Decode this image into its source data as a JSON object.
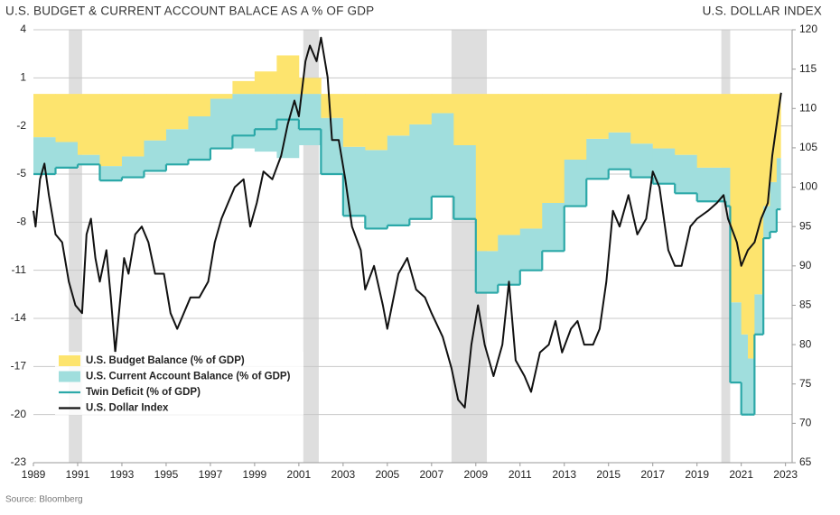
{
  "chart_data": {
    "type": "area",
    "title": "U.S. BUDGET & CURRENT ACCOUNT BALACE AS A % OF GDP",
    "y2_title": "U.S. DOLLAR INDEX",
    "source": "Source: Bloomberg",
    "x": [
      1989,
      1990,
      1991,
      1992,
      1993,
      1994,
      1995,
      1996,
      1997,
      1998,
      1999,
      2000,
      2001,
      2002,
      2003,
      2004,
      2005,
      2006,
      2007,
      2008,
      2009,
      2010,
      2011,
      2012,
      2013,
      2014,
      2015,
      2016,
      2017,
      2018,
      2019,
      2020.3,
      2020.5,
      2021.0,
      2021.3,
      2021.6,
      2022.0,
      2022.3,
      2022.6
    ],
    "series": [
      {
        "name": "U.S. Budget Balance (% of GDP)",
        "color": "#fde46e",
        "values": [
          -2.7,
          -3.0,
          -3.8,
          -4.5,
          -3.9,
          -2.9,
          -2.2,
          -1.4,
          -0.3,
          0.8,
          1.4,
          2.4,
          1.0,
          -1.5,
          -3.3,
          -3.5,
          -2.6,
          -1.9,
          -1.2,
          -3.2,
          -9.8,
          -8.8,
          -8.4,
          -6.8,
          -4.1,
          -2.8,
          -2.4,
          -3.1,
          -3.4,
          -3.8,
          -4.6,
          -4.6,
          -13.0,
          -15.0,
          -16.5,
          -12.5,
          -7.0,
          -5.5,
          -4.0
        ]
      },
      {
        "name": "U.S. Current Account Balance (% of GDP)",
        "color": "#a0dedd",
        "values": [
          -2.3,
          -1.6,
          -0.6,
          -0.9,
          -1.3,
          -1.9,
          -2.2,
          -2.7,
          -3.1,
          -3.4,
          -3.6,
          -4.0,
          -3.2,
          -3.5,
          -4.3,
          -4.9,
          -5.6,
          -5.9,
          -5.2,
          -4.6,
          -2.6,
          -3.1,
          -2.6,
          -3.0,
          -2.9,
          -2.5,
          -2.3,
          -2.1,
          -2.2,
          -2.4,
          -2.1,
          -2.4,
          -5.0,
          -5.0,
          -3.5,
          -2.5,
          -2.0,
          -3.1,
          -3.2
        ]
      },
      {
        "name": "Twin Deficit (% of GDP)",
        "color": "#2ba8a8",
        "values": [
          -5.0,
          -4.6,
          -4.4,
          -5.4,
          -5.2,
          -4.8,
          -4.4,
          -4.1,
          -3.4,
          -2.6,
          -2.2,
          -1.6,
          -2.2,
          -5.0,
          -7.6,
          -8.4,
          -8.2,
          -7.8,
          -6.4,
          -7.8,
          -12.4,
          -11.9,
          -11.0,
          -9.8,
          -7.0,
          -5.3,
          -4.7,
          -5.2,
          -5.6,
          -6.2,
          -6.7,
          -7.0,
          -18.0,
          -20.0,
          -20.0,
          -15.0,
          -9.0,
          -8.6,
          -7.2
        ]
      },
      {
        "name": "U.S. Dollar Index",
        "color": "#111111",
        "axis": "y2",
        "x": [
          1989.0,
          1989.1,
          1989.3,
          1989.5,
          1989.7,
          1990.0,
          1990.3,
          1990.6,
          1990.9,
          1991.2,
          1991.4,
          1991.6,
          1991.8,
          1992.0,
          1992.3,
          1992.5,
          1992.7,
          1992.9,
          1993.1,
          1993.3,
          1993.6,
          1993.9,
          1994.2,
          1994.5,
          1994.9,
          1995.2,
          1995.5,
          1995.8,
          1996.1,
          1996.5,
          1996.9,
          1997.2,
          1997.5,
          1997.8,
          1998.1,
          1998.5,
          1998.8,
          1999.1,
          1999.4,
          1999.8,
          2000.2,
          2000.5,
          2000.8,
          2001.0,
          2001.3,
          2001.5,
          2001.8,
          2002.0,
          2002.3,
          2002.5,
          2002.8,
          2003.1,
          2003.4,
          2003.8,
          2004.0,
          2004.4,
          2004.8,
          2005.0,
          2005.5,
          2005.9,
          2006.3,
          2006.7,
          2007.0,
          2007.5,
          2007.9,
          2008.2,
          2008.5,
          2008.8,
          2009.1,
          2009.4,
          2009.8,
          2010.2,
          2010.5,
          2010.8,
          2011.2,
          2011.5,
          2011.9,
          2012.3,
          2012.6,
          2012.9,
          2013.3,
          2013.6,
          2013.9,
          2014.3,
          2014.6,
          2014.9,
          2015.2,
          2015.5,
          2015.9,
          2016.3,
          2016.7,
          2017.0,
          2017.3,
          2017.7,
          2018.0,
          2018.3,
          2018.7,
          2019.0,
          2019.5,
          2019.9,
          2020.2,
          2020.4,
          2020.8,
          2021.0,
          2021.3,
          2021.6,
          2021.9,
          2022.2,
          2022.4,
          2022.6,
          2022.8
        ],
        "values": [
          97,
          95,
          101,
          103,
          99,
          94,
          93,
          88,
          85,
          84,
          94,
          96,
          91,
          88,
          92,
          86,
          79,
          85,
          91,
          89,
          94,
          95,
          93,
          89,
          89,
          84,
          82,
          84,
          86,
          86,
          88,
          93,
          96,
          98,
          100,
          101,
          95,
          98,
          102,
          101,
          104,
          108,
          111,
          109,
          116,
          118,
          116,
          119,
          114,
          106,
          106,
          101,
          95,
          92,
          87,
          90,
          85,
          82,
          89,
          91,
          87,
          86,
          84,
          81,
          77,
          73,
          72,
          80,
          85,
          80,
          76,
          80,
          88,
          78,
          76,
          74,
          79,
          80,
          83,
          79,
          82,
          83,
          80,
          80,
          82,
          88,
          97,
          95,
          99,
          94,
          96,
          102,
          100,
          92,
          90,
          90,
          95,
          96,
          97,
          98,
          99,
          96,
          93,
          90,
          92,
          93,
          96,
          98,
          104,
          108,
          112
        ]
      }
    ],
    "recessions": [
      [
        1990.6,
        1991.2
      ],
      [
        2001.2,
        2001.9
      ],
      [
        2007.9,
        2009.5
      ],
      [
        2020.1,
        2020.5
      ]
    ],
    "xlim": [
      1989,
      2023.3
    ],
    "xticks": [
      1989,
      1991,
      1993,
      1995,
      1997,
      1999,
      2001,
      2003,
      2005,
      2007,
      2009,
      2011,
      2013,
      2015,
      2017,
      2019,
      2021,
      2023
    ],
    "ylim": [
      -23,
      4
    ],
    "yticks": [
      4,
      1,
      -2,
      -5,
      -8,
      -11,
      -14,
      -17,
      -20,
      -23
    ],
    "y2lim": [
      65,
      120
    ],
    "y2ticks": [
      120,
      115,
      110,
      105,
      100,
      95,
      90,
      85,
      80,
      75,
      70,
      65
    ],
    "grid": true,
    "legend": "lower left"
  }
}
